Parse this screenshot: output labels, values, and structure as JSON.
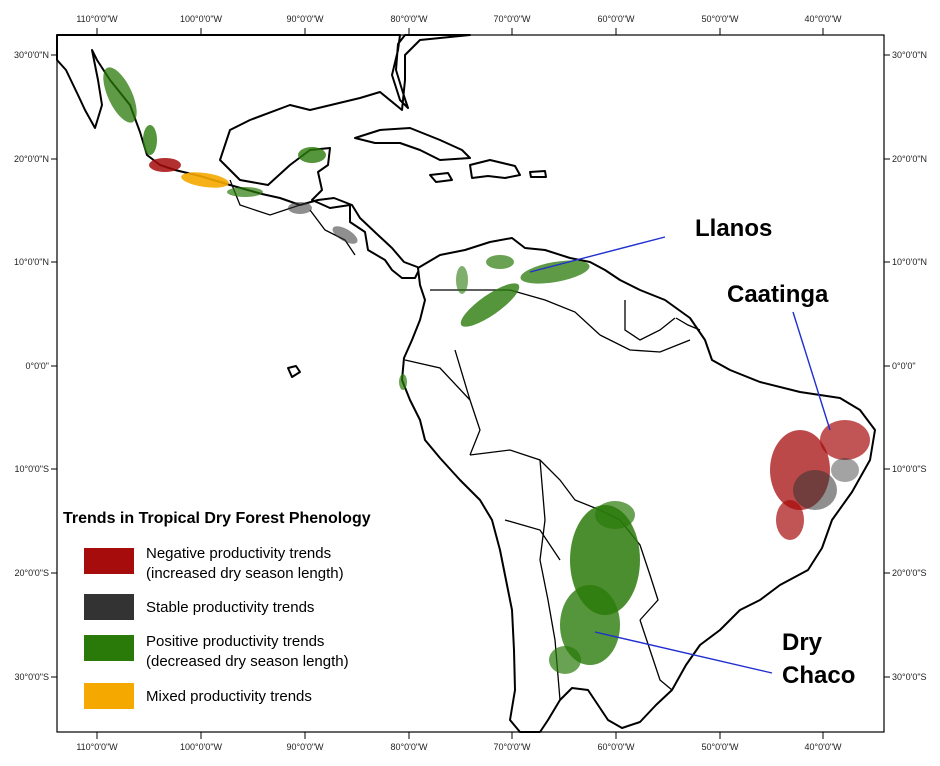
{
  "map": {
    "top_ticks": [
      "110°0'0\"W",
      "100°0'0\"W",
      "90°0'0\"W",
      "80°0'0\"W",
      "70°0'0\"W",
      "60°0'0\"W",
      "50°0'0\"W",
      "40°0'0\"W"
    ],
    "bottom_ticks": [
      "110°0'0\"W",
      "100°0'0\"W",
      "90°0'0\"W",
      "80°0'0\"W",
      "70°0'0\"W",
      "60°0'0\"W",
      "50°0'0\"W",
      "40°0'0\"W"
    ],
    "left_ticks": [
      "30°0'0\"N",
      "20°0'0\"N",
      "10°0'0\"N",
      "0°0'0\"",
      "10°0'0\"S",
      "20°0'0\"S",
      "30°0'0\"S"
    ],
    "right_ticks": [
      "30°0'0\"N",
      "20°0'0\"N",
      "10°0'0\"N",
      "0°0'0\"",
      "10°0'0\"S",
      "20°0'0\"S",
      "30°0'0\"S"
    ],
    "regions": {
      "llanos": "Llanos",
      "caatinga": "Caatinga",
      "dry_chaco_line1": "Dry",
      "dry_chaco_line2": "Chaco"
    }
  },
  "legend": {
    "title": "Trends in Tropical Dry Forest Phenology",
    "items": [
      {
        "line1": "Negative productivity trends",
        "line2": "(increased dry season length)",
        "color": "#a60c0c"
      },
      {
        "line1": "Stable productivity trends",
        "line2": "",
        "color": "#333333"
      },
      {
        "line1": "Positive productivity trends",
        "line2": "(decreased dry season length)",
        "color": "#2a7a0a"
      },
      {
        "line1": "Mixed productivity trends",
        "line2": "",
        "color": "#f5a800"
      }
    ]
  },
  "colors": {
    "negative": "#a60c0c",
    "stable": "#333333",
    "positive": "#2a7a0a",
    "mixed": "#f5a800",
    "leader_line": "#1f2fd0"
  }
}
